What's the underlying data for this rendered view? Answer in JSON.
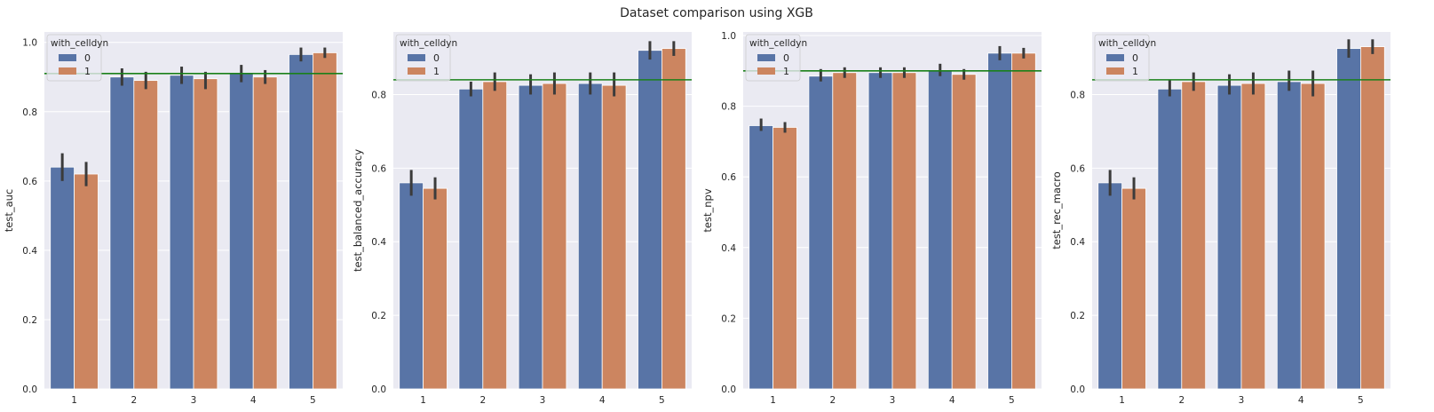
{
  "figure": {
    "title": "Dataset comparison using XGB",
    "legend_title": "with_celldyn",
    "series_names": [
      "0",
      "1"
    ],
    "colors": {
      "series": [
        "#5874a6",
        "#cc8560"
      ],
      "errorbar": "#3b3b3b",
      "hline": "#1a801a",
      "panel_bg": "#eaeaf2",
      "grid": "#ffffff"
    }
  },
  "chart_data": [
    {
      "type": "bar",
      "categories": [
        "1",
        "2",
        "3",
        "4",
        "5"
      ],
      "ylabel": "test_auc",
      "ylim": [
        0,
        1.03
      ],
      "yticks": [
        "0.0",
        "0.2",
        "0.4",
        "0.6",
        "0.8",
        "1.0"
      ],
      "hline": 0.91,
      "series": [
        {
          "name": "0",
          "values": [
            0.64,
            0.9,
            0.905,
            0.91,
            0.965
          ],
          "err_low": [
            0.6,
            0.875,
            0.88,
            0.885,
            0.945
          ],
          "err_high": [
            0.68,
            0.925,
            0.93,
            0.935,
            0.985
          ]
        },
        {
          "name": "1",
          "values": [
            0.62,
            0.89,
            0.895,
            0.9,
            0.97
          ],
          "err_low": [
            0.585,
            0.865,
            0.865,
            0.88,
            0.955
          ],
          "err_high": [
            0.655,
            0.915,
            0.915,
            0.92,
            0.985
          ]
        }
      ],
      "grid": true,
      "legend_position": "top-left"
    },
    {
      "type": "bar",
      "categories": [
        "1",
        "2",
        "3",
        "4",
        "5"
      ],
      "ylabel": "test_balanced_accuracy",
      "ylim": [
        0,
        0.97
      ],
      "yticks": [
        "0.0",
        "0.2",
        "0.4",
        "0.6",
        "0.8"
      ],
      "hline": 0.84,
      "series": [
        {
          "name": "0",
          "values": [
            0.56,
            0.815,
            0.825,
            0.83,
            0.92
          ],
          "err_low": [
            0.525,
            0.795,
            0.8,
            0.8,
            0.895
          ],
          "err_high": [
            0.595,
            0.835,
            0.855,
            0.86,
            0.945
          ]
        },
        {
          "name": "1",
          "values": [
            0.545,
            0.835,
            0.83,
            0.825,
            0.925
          ],
          "err_low": [
            0.515,
            0.81,
            0.8,
            0.795,
            0.905
          ],
          "err_high": [
            0.575,
            0.86,
            0.86,
            0.86,
            0.945
          ]
        }
      ],
      "grid": true,
      "legend_position": "top-left"
    },
    {
      "type": "bar",
      "categories": [
        "1",
        "2",
        "3",
        "4",
        "5"
      ],
      "ylabel": "test_npv",
      "ylim": [
        0,
        1.01
      ],
      "yticks": [
        "0.0",
        "0.2",
        "0.4",
        "0.6",
        "0.8",
        "1.0"
      ],
      "hline": 0.9,
      "series": [
        {
          "name": "0",
          "values": [
            0.745,
            0.885,
            0.895,
            0.9,
            0.95
          ],
          "err_low": [
            0.73,
            0.87,
            0.88,
            0.885,
            0.93
          ],
          "err_high": [
            0.765,
            0.905,
            0.91,
            0.92,
            0.97
          ]
        },
        {
          "name": "1",
          "values": [
            0.74,
            0.895,
            0.895,
            0.89,
            0.95
          ],
          "err_low": [
            0.725,
            0.88,
            0.88,
            0.875,
            0.935
          ],
          "err_high": [
            0.755,
            0.91,
            0.91,
            0.905,
            0.965
          ]
        }
      ],
      "grid": true,
      "legend_position": "top-left"
    },
    {
      "type": "bar",
      "categories": [
        "1",
        "2",
        "3",
        "4",
        "5"
      ],
      "ylabel": "test_rec_macro",
      "ylim": [
        0,
        0.97
      ],
      "yticks": [
        "0.0",
        "0.2",
        "0.4",
        "0.6",
        "0.8"
      ],
      "hline": 0.84,
      "series": [
        {
          "name": "0",
          "values": [
            0.56,
            0.815,
            0.825,
            0.835,
            0.925
          ],
          "err_low": [
            0.525,
            0.795,
            0.8,
            0.81,
            0.9
          ],
          "err_high": [
            0.595,
            0.84,
            0.855,
            0.865,
            0.95
          ]
        },
        {
          "name": "1",
          "values": [
            0.545,
            0.835,
            0.83,
            0.83,
            0.93
          ],
          "err_low": [
            0.515,
            0.81,
            0.8,
            0.795,
            0.91
          ],
          "err_high": [
            0.575,
            0.86,
            0.86,
            0.865,
            0.95
          ]
        }
      ],
      "grid": true,
      "legend_position": "top-left"
    }
  ]
}
